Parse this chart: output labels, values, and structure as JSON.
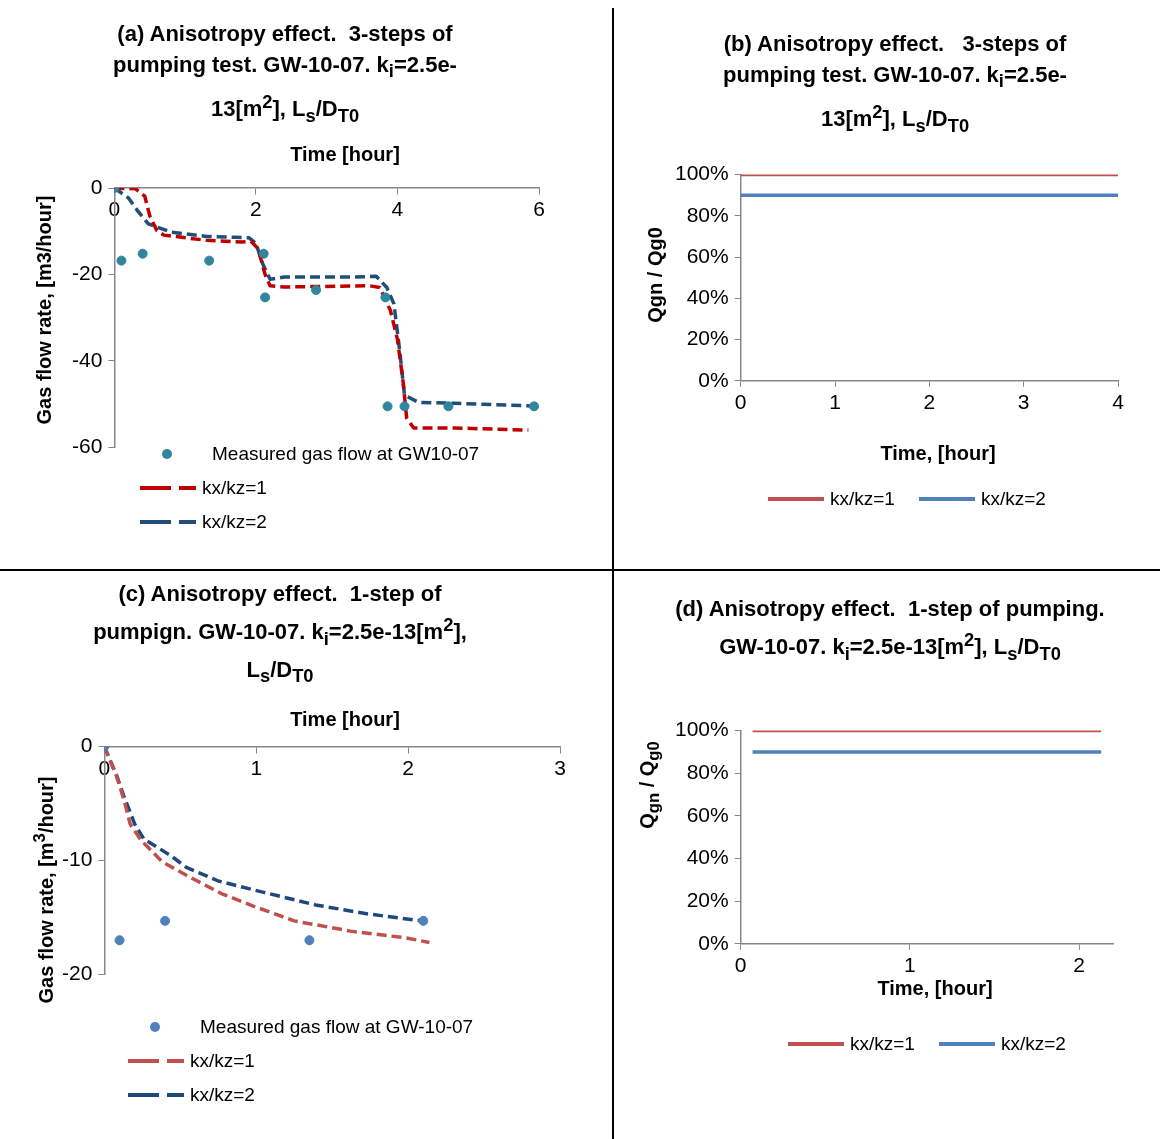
{
  "chart_data": [
    {
      "type": "line",
      "title": "(a) Anisotropy effect.  3-steps of pumping test. GW-10-07. k$_{i}$=2.5e-13[m$^{2}$], L$_{s}$/D$_{T0}$",
      "xlabel": "Time [hour]",
      "ylabel": "Gas flow rate, [m3/hour]",
      "xlim": [
        0,
        6
      ],
      "xticks": [
        0,
        2,
        4,
        6
      ],
      "ylim": [
        -60,
        0
      ],
      "yticks": [
        -60,
        -40,
        -20,
        0
      ],
      "legend": "bottom",
      "series": [
        {
          "name": "Measured gas flow at GW10-07",
          "type": "scatter",
          "marker": "circle",
          "color": "#31859c",
          "x": [
            0,
            0.1,
            0.4,
            1.34,
            2.11,
            2.13,
            2.85,
            3.83,
            3.86,
            4.1,
            4.72,
            5.93
          ],
          "values": [
            0,
            -16.8,
            -15.2,
            -16.8,
            -15.2,
            -25.3,
            -23.6,
            -25.3,
            -50.5,
            -50.5,
            -50.5,
            -50.5
          ]
        },
        {
          "name": "kx/kz=1",
          "type": "line",
          "line_style": "dashed",
          "marker": "none",
          "color": "#c00000",
          "x": [
            0,
            0.3,
            0.43,
            0.5,
            0.6,
            0.7,
            1.3,
            1.8,
            1.93,
            2.03,
            2.13,
            2.2,
            2.4,
            3.6,
            3.75,
            3.9,
            4.0,
            4.08,
            4.13,
            4.23,
            4.8,
            5.85
          ],
          "values": [
            0,
            -0.2,
            -1.9,
            -6.4,
            -9.8,
            -10.9,
            -12.1,
            -12.5,
            -12.3,
            -14,
            -20,
            -22.6,
            -22.9,
            -22.6,
            -23,
            -28.3,
            -35,
            -44.9,
            -53.2,
            -55.5,
            -55.5,
            -56
          ]
        },
        {
          "name": "kx/kz=2",
          "type": "line",
          "line_style": "dashed",
          "marker": "none",
          "color": "#1f4e79",
          "x": [
            0,
            0.2,
            0.33,
            0.48,
            0.8,
            1.3,
            1.7,
            1.9,
            2.0,
            2.1,
            2.2,
            2.4,
            3.4,
            3.7,
            3.85,
            3.95,
            4.03,
            4.1,
            4.3,
            4.8,
            5.93
          ],
          "values": [
            0,
            -2.3,
            -5.3,
            -8.3,
            -10.2,
            -11.2,
            -11.4,
            -11.5,
            -12.8,
            -17.7,
            -21.1,
            -20.6,
            -20.6,
            -20.4,
            -23,
            -26.8,
            -37.4,
            -47.9,
            -49.6,
            -49.8,
            -50.4
          ]
        }
      ]
    },
    {
      "type": "line",
      "title": "(b) Anisotropy effect.   3-steps of pumping test. GW-10-07. k$_{i}$=2.5e-13[m$^{2}$], L$_{s}$/D$_{T0}$",
      "xlabel": "Time, [hour]",
      "ylabel": "Qgn / Qg0",
      "xlim": [
        0,
        4
      ],
      "xticks": [
        0,
        1,
        2,
        3,
        4
      ],
      "ylim": [
        0,
        100
      ],
      "yticks": [
        {
          "value": 0,
          "label": "0%"
        },
        {
          "value": 20,
          "label": "20%"
        },
        {
          "value": 40,
          "label": "40%"
        },
        {
          "value": 60,
          "label": "60%"
        },
        {
          "value": 80,
          "label": "80%"
        },
        {
          "value": 100,
          "label": "100%"
        }
      ],
      "legend": "bottom",
      "series": [
        {
          "name": "kx/kz=1",
          "type": "line",
          "line_style": "solid",
          "marker": "none",
          "color": "#c0504d",
          "x": [
            0,
            1,
            2,
            3,
            4
          ],
          "values": [
            100,
            100,
            100,
            100,
            100
          ]
        },
        {
          "name": "kx/kz=2",
          "type": "line",
          "line_style": "solid",
          "marker": "none",
          "color": "#4f81bd",
          "x": [
            0,
            1,
            2,
            3,
            4
          ],
          "values": [
            90,
            90,
            90,
            90,
            90
          ]
        }
      ]
    },
    {
      "type": "line",
      "title": "(c) Anisotropy effect.  1-step of pumpign. GW-10-07. k$_{i}$=2.5e-13[m$^{2}$], L$_{s}$/D$_{T0}$",
      "xlabel": "Time [hour]",
      "ylabel": "Gas flow rate, [m$^{3}$/hour]",
      "xlim": [
        0,
        3
      ],
      "xticks": [
        0,
        1,
        2,
        3
      ],
      "ylim": [
        -20,
        0
      ],
      "yticks": [
        -20,
        -10,
        0
      ],
      "legend": "bottom",
      "series": [
        {
          "name": "Measured gas flow at GW-10-07",
          "type": "scatter",
          "marker": "circle",
          "color": "#4f81bd",
          "x": [
            0,
            0.1,
            0.4,
            1.35,
            2.1
          ],
          "values": [
            0,
            -17,
            -15.3,
            -17,
            -15.3
          ]
        },
        {
          "name": "kx/kz=1",
          "type": "line",
          "line_style": "dashed",
          "marker": "none",
          "color": "#c0504d",
          "x": [
            0,
            0.08,
            0.13,
            0.17,
            0.24,
            0.38,
            0.54,
            0.77,
            0.98,
            1.25,
            1.62,
            1.99,
            2.14
          ],
          "values": [
            0,
            -2.6,
            -4.7,
            -6.8,
            -8.2,
            -10.1,
            -11.3,
            -12.9,
            -14,
            -15.3,
            -16.2,
            -16.8,
            -17.2
          ]
        },
        {
          "name": "kx/kz=2",
          "type": "line",
          "line_style": "dashed",
          "marker": "none",
          "color": "#1f497d",
          "x": [
            0,
            0.08,
            0.13,
            0.2,
            0.26,
            0.44,
            0.54,
            0.75,
            1.05,
            1.39,
            1.74,
            2.09
          ],
          "values": [
            0,
            -2.5,
            -4.4,
            -6.8,
            -8.1,
            -9.6,
            -10.6,
            -11.8,
            -12.8,
            -13.9,
            -14.7,
            -15.3
          ]
        }
      ]
    },
    {
      "type": "line",
      "title": "(d) Anisotropy effect.  1-step of pumping. GW-10-07. k$_{i}$=2.5e-13[m$^{2}$], L$_{s}$/D$_{T0}$",
      "xlabel": "Time, [hour]",
      "ylabel": "Q$_{gn}$ / Q$_{g0}$",
      "xlim": [
        0,
        2.2
      ],
      "xticks": [
        0,
        1,
        2
      ],
      "ylim": [
        0,
        100
      ],
      "yticks": [
        {
          "value": 0,
          "label": "0%"
        },
        {
          "value": 20,
          "label": "20%"
        },
        {
          "value": 40,
          "label": "40%"
        },
        {
          "value": 60,
          "label": "60%"
        },
        {
          "value": 80,
          "label": "80%"
        },
        {
          "value": 100,
          "label": "100%"
        }
      ],
      "legend": "bottom",
      "series": [
        {
          "name": "kx/kz=1",
          "type": "line",
          "line_style": "solid",
          "marker": "none",
          "color": "#c0504d",
          "x": [
            0.07,
            0.5,
            1,
            1.5,
            2.13
          ],
          "values": [
            100,
            100,
            100,
            100,
            100
          ]
        },
        {
          "name": "kx/kz=2",
          "type": "line",
          "line_style": "solid",
          "marker": "none",
          "color": "#4f81bd",
          "x": [
            0.07,
            0.5,
            1,
            1.5,
            2.13
          ],
          "values": [
            90,
            90,
            90,
            90,
            90
          ]
        }
      ]
    }
  ]
}
